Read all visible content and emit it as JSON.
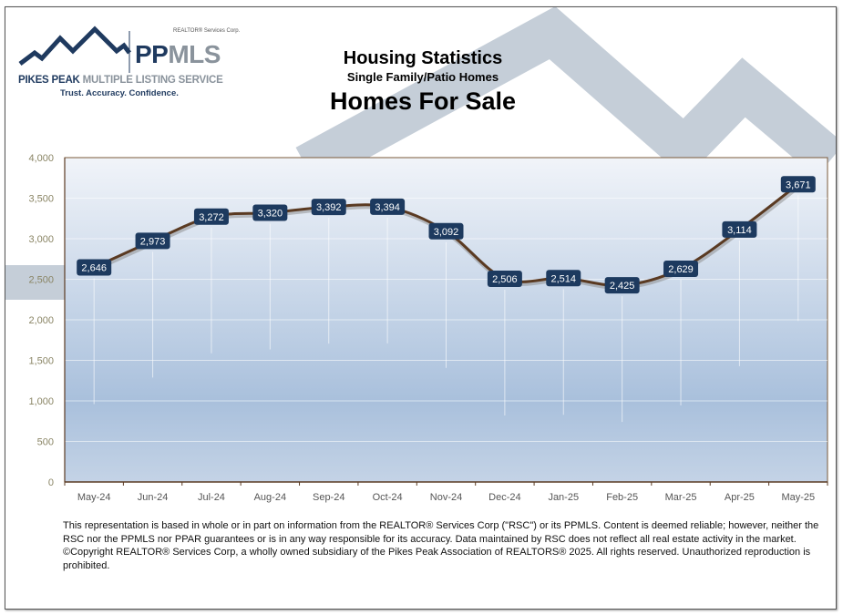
{
  "logo": {
    "corp_tag": "REALTOR® Services Corp.",
    "name_bold": "PP",
    "name_light": "MLS",
    "subtitle_bold": "PIKES PEAK",
    "subtitle_light": "MULTIPLE LISTING SERVICE",
    "tagline": "Trust. Accuracy. Confidence."
  },
  "header": {
    "title": "Housing Statistics",
    "subtitle": "Single Family/Patio Homes",
    "chart_title": "Homes For Sale"
  },
  "colors": {
    "label_bg": "#1d3a5f",
    "line": "#5a3a22",
    "axis_text": "#8a8565",
    "plot_top": "#f1f4f9",
    "plot_bottom": "#a9c0dc",
    "watermark": "#c5ced8"
  },
  "chart_data": {
    "type": "line",
    "title": "Homes For Sale",
    "subtitle": "Housing Statistics - Single Family/Patio Homes",
    "xlabel": "",
    "ylabel": "",
    "categories": [
      "May-24",
      "Jun-24",
      "Jul-24",
      "Aug-24",
      "Sep-24",
      "Oct-24",
      "Nov-24",
      "Dec-24",
      "Jan-25",
      "Feb-25",
      "Mar-25",
      "Apr-25",
      "May-25"
    ],
    "values": [
      2646,
      2973,
      3272,
      3320,
      3392,
      3394,
      3092,
      2506,
      2514,
      2425,
      2629,
      3114,
      3671
    ],
    "data_labels": [
      "2,646",
      "2,973",
      "3,272",
      "3,320",
      "3,392",
      "3,394",
      "3,092",
      "2,506",
      "2,514",
      "2,425",
      "2,629",
      "3,114",
      "3,671"
    ],
    "ylim": [
      0,
      4000
    ],
    "yticks": [
      "0",
      "500",
      "1,000",
      "1,500",
      "2,000",
      "2,500",
      "3,000",
      "3,500",
      "4,000"
    ],
    "grid": true,
    "legend": "none"
  },
  "disclaimer": "This representation is based in whole or in part on information from the REALTOR® Services Corp (\"RSC\") or its PPMLS. Content is deemed reliable; however, neither the RSC nor the PPMLS nor PPAR guarantees or is in any way responsible for its accuracy. Data maintained by RSC does not reflect all real estate activity in the market. ©Copyright REALTOR® Services Corp, a wholly owned subsidiary of the Pikes Peak Association of REALTORS® 2025. All rights reserved. Unauthorized reproduction is prohibited."
}
